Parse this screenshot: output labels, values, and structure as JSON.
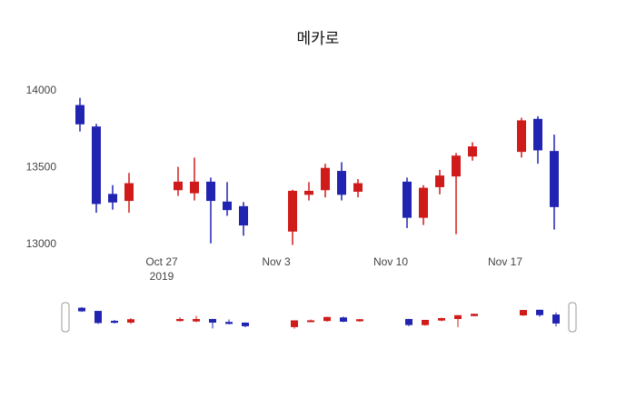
{
  "chart_data": {
    "type": "candlestick",
    "title": "메카로",
    "x": [
      "2019-10-22",
      "2019-10-23",
      "2019-10-24",
      "2019-10-25",
      "2019-10-28",
      "2019-10-29",
      "2019-10-30",
      "2019-10-31",
      "2019-11-01",
      "2019-11-04",
      "2019-11-05",
      "2019-11-06",
      "2019-11-07",
      "2019-11-08",
      "2019-11-11",
      "2019-11-12",
      "2019-11-13",
      "2019-11-14",
      "2019-11-15",
      "2019-11-18",
      "2019-11-19",
      "2019-11-20"
    ],
    "open": [
      13900,
      13760,
      13320,
      13280,
      13350,
      13330,
      13400,
      13270,
      13240,
      13080,
      13320,
      13350,
      13470,
      13340,
      13400,
      13170,
      13370,
      13440,
      13570,
      13600,
      13810,
      13600
    ],
    "high": [
      13950,
      13780,
      13380,
      13460,
      13500,
      13560,
      13430,
      13400,
      13270,
      13350,
      13400,
      13520,
      13530,
      13420,
      13430,
      13380,
      13480,
      13590,
      13660,
      13820,
      13830,
      13710
    ],
    "low": [
      13730,
      13200,
      13220,
      13200,
      13310,
      13280,
      13000,
      13180,
      13050,
      12990,
      13280,
      13300,
      13280,
      13300,
      13100,
      13120,
      13320,
      13060,
      13540,
      13560,
      13520,
      13090
    ],
    "close": [
      13780,
      13260,
      13270,
      13390,
      13400,
      13400,
      13280,
      13220,
      13120,
      13340,
      13340,
      13490,
      13320,
      13390,
      13170,
      13360,
      13440,
      13570,
      13630,
      13800,
      13610,
      13240
    ],
    "ylim": [
      12975,
      14025
    ],
    "y_ticks": [
      14000,
      13500,
      13000
    ],
    "x_ticks": [
      {
        "date": "2019-10-27",
        "label": "Oct 27",
        "sublabel": "2019"
      },
      {
        "date": "2019-11-03",
        "label": "Nov 3",
        "sublabel": ""
      },
      {
        "date": "2019-11-10",
        "label": "Nov 10",
        "sublabel": ""
      },
      {
        "date": "2019-11-17",
        "label": "Nov 17",
        "sublabel": ""
      }
    ],
    "up_color": "#d01b1b",
    "down_color": "#2124b1",
    "axis_text_color": "#444444",
    "background": "#ffffff",
    "grid": false,
    "rangeslider": true,
    "legend_position": "none"
  }
}
